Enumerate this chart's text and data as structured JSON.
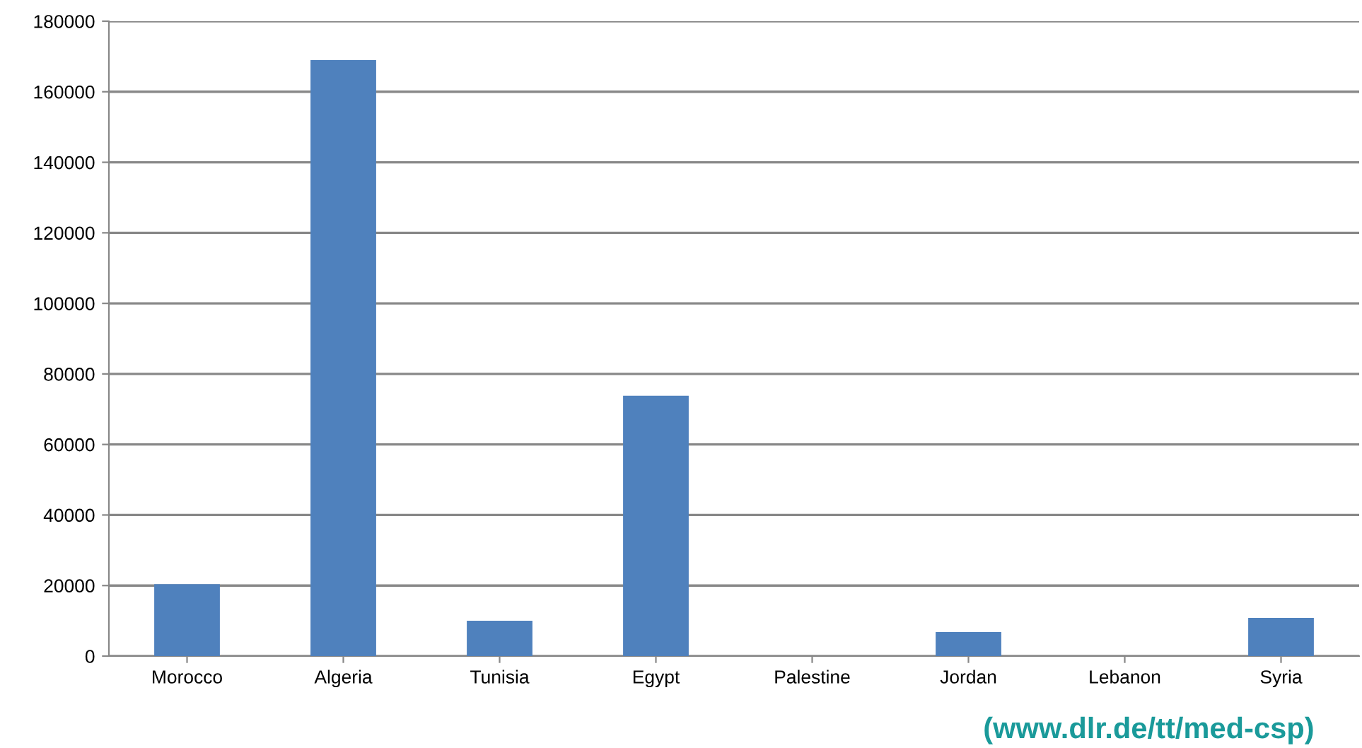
{
  "chart_data": {
    "type": "bar",
    "categories": [
      "Morocco",
      "Algeria",
      "Tunisia",
      "Egypt",
      "Palestine",
      "Jordan",
      "Lebanon",
      "Syria"
    ],
    "values": [
      20400,
      169000,
      10000,
      73800,
      0,
      6800,
      0,
      10800
    ],
    "color": "#4f81bd",
    "ylim": [
      0,
      180000
    ],
    "yticks": [
      0,
      20000,
      40000,
      60000,
      80000,
      100000,
      120000,
      140000,
      160000,
      180000
    ],
    "grid": "y",
    "annotations": [
      "(www.dlr.de/tt/med-csp)"
    ]
  }
}
